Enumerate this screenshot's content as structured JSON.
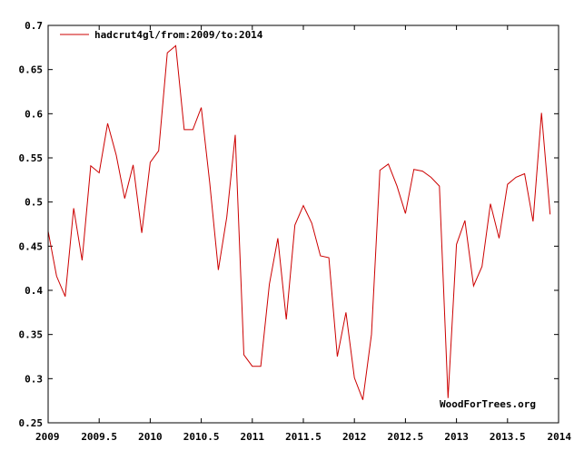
{
  "chart_data": {
    "type": "line",
    "title": "",
    "xlabel": "",
    "ylabel": "",
    "xlim": [
      2009,
      2014
    ],
    "ylim": [
      0.25,
      0.7
    ],
    "x_ticks": [
      "2009",
      "2009.5",
      "2010",
      "2010.5",
      "2011",
      "2011.5",
      "2012",
      "2012.5",
      "2013",
      "2013.5",
      "2014"
    ],
    "y_ticks": [
      "0.25",
      "0.3",
      "0.35",
      "0.4",
      "0.45",
      "0.5",
      "0.55",
      "0.6",
      "0.65",
      "0.7"
    ],
    "grid": false,
    "legend_position": "top-left",
    "series": [
      {
        "name": "hadcrut4gl/from:2009/to:2014",
        "color": "#cc0000",
        "x": [
          2009.0,
          2009.083,
          2009.167,
          2009.25,
          2009.333,
          2009.417,
          2009.5,
          2009.583,
          2009.667,
          2009.75,
          2009.833,
          2009.917,
          2010.0,
          2010.083,
          2010.167,
          2010.25,
          2010.333,
          2010.417,
          2010.5,
          2010.583,
          2010.667,
          2010.75,
          2010.833,
          2010.917,
          2011.0,
          2011.083,
          2011.167,
          2011.25,
          2011.333,
          2011.417,
          2011.5,
          2011.583,
          2011.667,
          2011.75,
          2011.833,
          2011.917,
          2012.0,
          2012.083,
          2012.167,
          2012.25,
          2012.333,
          2012.417,
          2012.5,
          2012.583,
          2012.667,
          2012.75,
          2012.833,
          2012.917,
          2013.0,
          2013.083,
          2013.167,
          2013.25,
          2013.333,
          2013.417,
          2013.5,
          2013.583,
          2013.667,
          2013.75,
          2013.833,
          2013.917
        ],
        "y": [
          0.467,
          0.416,
          0.393,
          0.493,
          0.434,
          0.541,
          0.533,
          0.589,
          0.553,
          0.504,
          0.542,
          0.465,
          0.545,
          0.558,
          0.669,
          0.677,
          0.582,
          0.582,
          0.607,
          0.522,
          0.423,
          0.483,
          0.576,
          0.327,
          0.314,
          0.314,
          0.407,
          0.459,
          0.367,
          0.474,
          0.496,
          0.476,
          0.439,
          0.437,
          0.325,
          0.375,
          0.301,
          0.276,
          0.35,
          0.536,
          0.543,
          0.518,
          0.487,
          0.537,
          0.535,
          0.528,
          0.518,
          0.278,
          0.452,
          0.479,
          0.405,
          0.427,
          0.498,
          0.459,
          0.52,
          0.528,
          0.532,
          0.478,
          0.601,
          0.486
        ]
      }
    ],
    "annotations": [
      "WoodForTrees.org"
    ]
  }
}
